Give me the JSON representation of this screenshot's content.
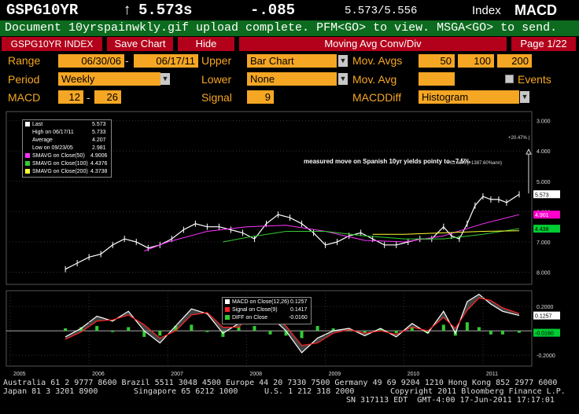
{
  "header": {
    "ticker": "GSPG10YR",
    "arrow": "↑",
    "last": "5.573s",
    "change": "-.085",
    "bid_ask": "5.573/5.556",
    "index_label": "Index",
    "function": "MACD"
  },
  "message": "Document 10yrspainwkly.gif upload complete. PFM<GO> to view. MSGA<GO> to send.",
  "tabs": {
    "security": "GSPG10YR INDEX",
    "save_chart": "Save Chart",
    "hide": "Hide",
    "study": "Moving Avg Conv/Div",
    "page": "Page 1/22"
  },
  "form": {
    "range_label": "Range",
    "range_start": "06/30/06",
    "range_dash": "-",
    "range_end": "06/17/11",
    "upper_label": "Upper",
    "upper_value": "Bar Chart",
    "mov_avgs_label": "Mov. Avgs",
    "mov_avgs": [
      "50",
      "100",
      "200"
    ],
    "period_label": "Period",
    "period_value": "Weekly",
    "lower_label": "Lower",
    "lower_value": "None",
    "mov_avg_label": "Mov. Avg",
    "mov_avg_value": "",
    "events_label": "Events",
    "macd_label": "MACD",
    "macd_fast": "12",
    "macd_dash": "-",
    "macd_slow": "26",
    "signal_label": "Signal",
    "signal_value": "9",
    "macddiff_label": "MACDDiff",
    "macddiff_value": "Histogram"
  },
  "upper_legend": [
    {
      "label": "Last",
      "value": "5.573",
      "color": "#ffffff"
    },
    {
      "label": "High on 06/17/11",
      "value": "5.733",
      "color": "#ffffff"
    },
    {
      "label": "Average",
      "value": "4.207",
      "color": "#ffffff"
    },
    {
      "label": "Low on 09/23/05",
      "value": "2.981",
      "color": "#ffffff"
    },
    {
      "label": "SMAVG on Close(50)",
      "value": "4.9006",
      "color": "#ff33ff"
    },
    {
      "label": "SMAVG on Close(100)",
      "value": "4.4376",
      "color": "#33cc33"
    },
    {
      "label": "SMAVG on Close(200)",
      "value": "4.3738",
      "color": "#ffff33"
    }
  ],
  "annotation": "measured move on Spanish 10yr yields pointy to ~7.5%",
  "annotation_small_1": "+20.47% (",
  "annotation_small_2": "+63.68% (+1387.60%ann)",
  "upper_axis": [
    "8.000",
    "7.000",
    "6.000",
    "5.000",
    "4.000",
    "3.000"
  ],
  "upper_tags": [
    {
      "text": "5.573",
      "bg": "#ffffff",
      "fg": "#000000"
    },
    {
      "text": "4.901",
      "bg": "#ff00cc",
      "fg": "#ffffff"
    },
    {
      "text": "4.438",
      "bg": "#00cc33",
      "fg": "#000000"
    }
  ],
  "lower_legend": [
    {
      "label": "MACD on Close(12,26)",
      "value": "0.1257",
      "color": "#ffffff"
    },
    {
      "label": "Signal on Close(9)",
      "value": "0.1417",
      "color": "#ff2222"
    },
    {
      "label": "DIFF on Close",
      "value": "-0.0160",
      "color": "#33cc33"
    }
  ],
  "lower_axis": [
    "0.2000",
    "0",
    "-0.2000"
  ],
  "lower_tags": [
    {
      "text": "0.1257",
      "bg": "#ffffff",
      "fg": "#000000"
    },
    {
      "text": "-0.0160",
      "bg": "#00cc33",
      "fg": "#000000"
    }
  ],
  "x_axis": [
    "2005",
    "2006",
    "2007",
    "2008",
    "2009",
    "2010",
    "2011"
  ],
  "footer": {
    "line1": "Australia 61 2 9777 8600 Brazil 5511 3048 4500 Europe 44 20 7330 7500 Germany 49 69 9204 1210 Hong Kong 852 2977 6000",
    "line2a": "Japan 81 3 3201 8900",
    "line2b": "Singapore 65 6212 1000",
    "line2c": "U.S. 1 212 318 2000",
    "line2d": "Copyright 2011 Bloomberg Finance L.P.",
    "line3": "SN 317113 EDT  GMT-4:00 17-Jun-2011 17:17:01"
  },
  "chart_data": {
    "type": "line",
    "upper": {
      "x_labels": [
        "2005",
        "2006",
        "2007",
        "2008",
        "2009",
        "2010",
        "2011"
      ],
      "ylim": [
        2.6,
        8.3
      ],
      "yticks": [
        3,
        4,
        5,
        6,
        7,
        8
      ],
      "series": [
        {
          "name": "Close",
          "color": "#ffffff",
          "x": [
            2005.7,
            2005.85,
            2006.0,
            2006.15,
            2006.3,
            2006.45,
            2006.6,
            2006.75,
            2006.9,
            2007.05,
            2007.2,
            2007.35,
            2007.5,
            2007.65,
            2007.8,
            2007.95,
            2008.1,
            2008.25,
            2008.4,
            2008.55,
            2008.7,
            2008.85,
            2009.0,
            2009.15,
            2009.3,
            2009.45,
            2009.6,
            2009.75,
            2009.9,
            2010.05,
            2010.2,
            2010.35,
            2010.5,
            2010.6,
            2010.7,
            2010.8,
            2010.9,
            2011.0,
            2011.1,
            2011.2,
            2011.3,
            2011.46
          ],
          "values": [
            3.1,
            3.3,
            3.5,
            3.6,
            3.9,
            4.1,
            4.0,
            3.8,
            3.9,
            4.1,
            4.4,
            4.6,
            4.5,
            4.5,
            4.4,
            4.3,
            4.1,
            4.6,
            4.9,
            4.8,
            4.6,
            4.3,
            3.9,
            4.0,
            4.2,
            4.3,
            4.1,
            3.9,
            3.9,
            4.0,
            4.1,
            4.1,
            4.5,
            4.2,
            4.1,
            4.6,
            5.2,
            5.5,
            5.4,
            5.4,
            5.3,
            5.57
          ]
        },
        {
          "name": "SMAVG on Close(50)",
          "color": "#ff33ff",
          "x": [
            2006.7,
            2007.0,
            2007.5,
            2008.0,
            2008.5,
            2009.0,
            2009.5,
            2010.0,
            2010.5,
            2011.0,
            2011.46
          ],
          "values": [
            3.7,
            4.0,
            4.35,
            4.5,
            4.55,
            4.35,
            4.05,
            4.0,
            4.2,
            4.6,
            4.9
          ]
        },
        {
          "name": "SMAVG on Close(100)",
          "color": "#33cc33",
          "x": [
            2007.7,
            2008.0,
            2008.5,
            2009.0,
            2009.5,
            2010.0,
            2010.5,
            2011.0,
            2011.46
          ],
          "values": [
            4.0,
            4.15,
            4.35,
            4.35,
            4.2,
            4.1,
            4.1,
            4.25,
            4.44
          ]
        },
        {
          "name": "SMAVG on Close(200)",
          "color": "#ffff33",
          "x": [
            2009.6,
            2010.0,
            2010.5,
            2011.0,
            2011.46
          ],
          "values": [
            4.25,
            4.25,
            4.3,
            4.35,
            4.37
          ]
        }
      ]
    },
    "lower": {
      "ylim": [
        -0.29,
        0.33
      ],
      "yticks": [
        0.2,
        0,
        -0.2
      ],
      "series": [
        {
          "name": "MACD on Close(12,26)",
          "color": "#ffffff",
          "x": [
            2005.7,
            2005.9,
            2006.1,
            2006.3,
            2006.5,
            2006.7,
            2006.9,
            2007.1,
            2007.3,
            2007.5,
            2007.7,
            2007.9,
            2008.1,
            2008.3,
            2008.5,
            2008.7,
            2008.9,
            2009.1,
            2009.3,
            2009.5,
            2009.7,
            2009.9,
            2010.1,
            2010.3,
            2010.5,
            2010.65,
            2010.8,
            2010.95,
            2011.1,
            2011.25,
            2011.46
          ],
          "values": [
            -0.05,
            0.02,
            0.12,
            0.08,
            0.16,
            0.0,
            -0.1,
            0.04,
            0.18,
            0.14,
            -0.02,
            0.06,
            0.2,
            0.12,
            0.0,
            -0.18,
            -0.06,
            0.0,
            0.02,
            -0.04,
            0.02,
            -0.05,
            0.06,
            -0.02,
            0.16,
            -0.02,
            0.24,
            0.3,
            0.22,
            0.16,
            0.1257
          ]
        },
        {
          "name": "Signal on Close(9)",
          "color": "#ff2222",
          "x": [
            2005.7,
            2005.9,
            2006.1,
            2006.3,
            2006.5,
            2006.7,
            2006.9,
            2007.1,
            2007.3,
            2007.5,
            2007.7,
            2007.9,
            2008.1,
            2008.3,
            2008.5,
            2008.7,
            2008.9,
            2009.1,
            2009.3,
            2009.5,
            2009.7,
            2009.9,
            2010.1,
            2010.3,
            2010.5,
            2010.65,
            2010.8,
            2010.95,
            2011.1,
            2011.25,
            2011.46
          ],
          "values": [
            -0.07,
            -0.01,
            0.08,
            0.09,
            0.13,
            0.05,
            -0.06,
            0.0,
            0.13,
            0.15,
            0.03,
            0.03,
            0.16,
            0.15,
            0.04,
            -0.12,
            -0.1,
            -0.02,
            0.01,
            -0.02,
            0.0,
            -0.03,
            0.03,
            0.0,
            0.11,
            0.02,
            0.17,
            0.27,
            0.25,
            0.19,
            0.1417
          ]
        },
        {
          "name": "DIFF on Close",
          "color": "#33cc33",
          "type": "histogram",
          "x": [
            2005.7,
            2005.9,
            2006.1,
            2006.3,
            2006.5,
            2006.7,
            2006.9,
            2007.1,
            2007.3,
            2007.5,
            2007.7,
            2007.9,
            2008.1,
            2008.3,
            2008.5,
            2008.7,
            2008.9,
            2009.1,
            2009.3,
            2009.5,
            2009.7,
            2009.9,
            2010.1,
            2010.3,
            2010.5,
            2010.65,
            2010.8,
            2010.95,
            2011.1,
            2011.25,
            2011.46
          ],
          "values": [
            0.02,
            0.03,
            0.04,
            -0.01,
            0.03,
            -0.05,
            -0.04,
            0.04,
            0.05,
            -0.01,
            -0.05,
            0.03,
            0.04,
            -0.03,
            -0.04,
            -0.06,
            0.04,
            0.02,
            0.01,
            -0.02,
            0.02,
            -0.02,
            0.03,
            -0.02,
            0.05,
            -0.04,
            0.07,
            0.03,
            -0.03,
            -0.03,
            -0.016
          ]
        }
      ]
    }
  }
}
